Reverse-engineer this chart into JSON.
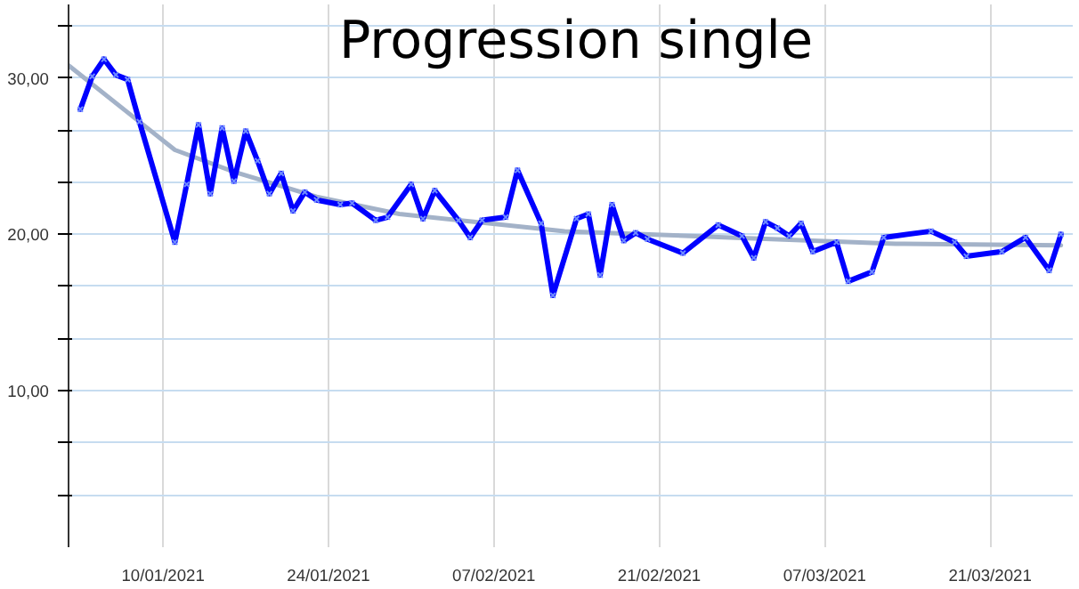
{
  "chart_data": {
    "type": "line",
    "title": "Progression single",
    "xlim": [
      "2021-01-02",
      "2021-03-28"
    ],
    "xticks": [
      {
        "value": "2021-01-10",
        "label": "10/01/2021"
      },
      {
        "value": "2021-01-24",
        "label": "24/01/2021"
      },
      {
        "value": "2021-02-07",
        "label": "07/02/2021"
      },
      {
        "value": "2021-02-21",
        "label": "21/02/2021"
      },
      {
        "value": "2021-03-07",
        "label": "07/03/2021"
      },
      {
        "value": "2021-03-21",
        "label": "21/03/2021"
      }
    ],
    "ylim": [
      0,
      34.7
    ],
    "yticks": [
      {
        "value": 3.33,
        "label": null
      },
      {
        "value": 6.67,
        "label": null
      },
      {
        "value": 10,
        "label": "10,00"
      },
      {
        "value": 13.33,
        "label": null
      },
      {
        "value": 16.67,
        "label": null
      },
      {
        "value": 20,
        "label": "20,00"
      },
      {
        "value": 23.33,
        "label": null
      },
      {
        "value": 26.67,
        "label": null
      },
      {
        "value": 30,
        "label": "30,00"
      },
      {
        "value": 33.33,
        "label": null
      }
    ],
    "grid": true,
    "series": [
      {
        "color": "#0000ff",
        "marker": "cross",
        "line_style": "solid",
        "x": [
          "2021-01-03",
          "2021-01-04",
          "2021-01-05",
          "2021-01-06",
          "2021-01-07",
          "2021-01-08",
          "2021-01-11",
          "2021-01-12",
          "2021-01-13",
          "2021-01-14",
          "2021-01-15",
          "2021-01-16",
          "2021-01-17",
          "2021-01-18",
          "2021-01-19",
          "2021-01-20",
          "2021-01-21",
          "2021-01-22",
          "2021-01-23",
          "2021-01-25",
          "2021-01-26",
          "2021-01-28",
          "2021-01-29",
          "2021-01-31",
          "2021-02-01",
          "2021-02-02",
          "2021-02-04",
          "2021-02-05",
          "2021-02-06",
          "2021-02-08",
          "2021-02-09",
          "2021-02-11",
          "2021-02-12",
          "2021-02-14",
          "2021-02-15",
          "2021-02-16",
          "2021-02-17",
          "2021-02-18",
          "2021-02-19",
          "2021-02-20",
          "2021-02-23",
          "2021-02-26",
          "2021-02-28",
          "2021-03-01",
          "2021-03-02",
          "2021-03-03",
          "2021-03-04",
          "2021-03-05",
          "2021-03-06",
          "2021-03-08",
          "2021-03-09",
          "2021-03-11",
          "2021-03-12",
          "2021-03-16",
          "2021-03-18",
          "2021-03-19",
          "2021-03-22",
          "2021-03-24",
          "2021-03-26",
          "2021-03-27"
        ],
        "values": [
          28.0,
          30.1,
          31.2,
          30.2,
          29.9,
          27.2,
          19.5,
          23.2,
          27.0,
          22.6,
          26.8,
          23.4,
          26.6,
          24.7,
          22.6,
          23.9,
          21.5,
          22.7,
          22.2,
          21.9,
          22.0,
          20.9,
          21.1,
          23.2,
          21.0,
          22.8,
          20.9,
          19.8,
          20.9,
          21.1,
          24.1,
          20.7,
          16.1,
          21.0,
          21.3,
          17.4,
          21.9,
          19.6,
          20.1,
          19.7,
          18.8,
          20.6,
          19.9,
          18.5,
          20.8,
          20.4,
          19.9,
          20.7,
          18.9,
          19.5,
          17.0,
          17.6,
          19.8,
          20.2,
          19.5,
          18.6,
          18.9,
          19.8,
          17.7,
          20.0
        ]
      },
      {
        "type": "line",
        "color": "#a3b2c8",
        "marker": "none",
        "line_style": "solid",
        "x": [
          "2021-01-02",
          "2021-01-08",
          "2021-01-11",
          "2021-01-16",
          "2021-01-23",
          "2021-01-30",
          "2021-02-13",
          "2021-02-27",
          "2021-03-13",
          "2021-03-27"
        ],
        "values": [
          30.8,
          27.2,
          25.4,
          24.0,
          22.4,
          21.3,
          20.2,
          19.8,
          19.4,
          19.3
        ]
      }
    ]
  }
}
